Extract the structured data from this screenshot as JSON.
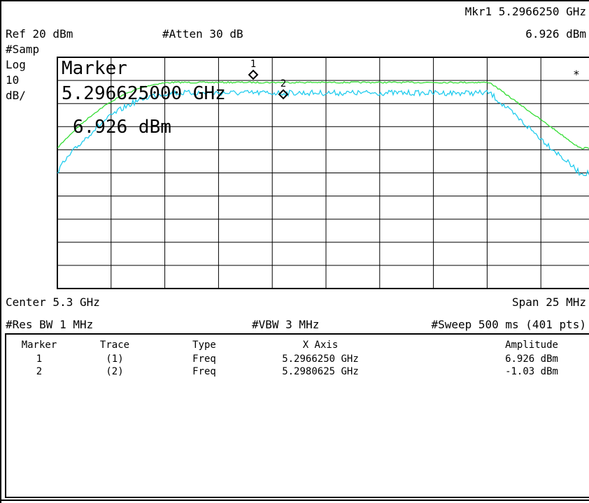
{
  "header": {
    "marker_readout": "Mkr1 5.2966250 GHz",
    "ref_level": "Ref 20 dBm",
    "attenuation": "#Atten 30 dB",
    "marker_amplitude": "6.926 dBm"
  },
  "side_labels": [
    "#Samp",
    "Log",
    "10",
    "dB/"
  ],
  "marker_overlay": {
    "title": "Marker",
    "frequency": "5.296625000 GHz",
    "amplitude": "6.926 dBm"
  },
  "marker_ids": [
    "1",
    "2"
  ],
  "star": "*",
  "footer": {
    "center": "Center 5.3 GHz",
    "span": "Span 25 MHz",
    "res_bw": "#Res BW 1 MHz",
    "vbw": "#VBW 3 MHz",
    "sweep": "#Sweep 500 ms (401 pts)"
  },
  "table": {
    "headers": [
      "Marker",
      "Trace",
      "Type",
      "X Axis",
      "Amplitude"
    ],
    "rows": [
      [
        "1",
        "(1)",
        "Freq",
        "5.2966250 GHz",
        "6.926 dBm"
      ],
      [
        "2",
        "(2)",
        "Freq",
        "5.2980625 GHz",
        "-1.03 dBm"
      ]
    ]
  }
}
